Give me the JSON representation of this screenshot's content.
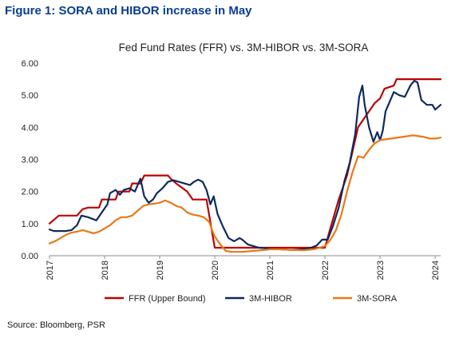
{
  "figure_title": "Figure 1: SORA and HIBOR increase in May",
  "source": "Source: Bloomberg, PSR",
  "chart_data": {
    "type": "line",
    "title": "Fed Fund Rates (FFR) vs. 3M-HIBOR vs. 3M-SORA",
    "xlabel": "",
    "ylabel": "",
    "xlim": [
      2017.0,
      2024.1
    ],
    "ylim": [
      0,
      6
    ],
    "y_ticks": [
      "0.00",
      "1.00",
      "2.00",
      "3.00",
      "4.00",
      "5.00",
      "6.00"
    ],
    "x_ticks": [
      "2017",
      "2018",
      "2019",
      "2020",
      "2021",
      "2022",
      "2023",
      "2024"
    ],
    "grid": false,
    "legend": "bottom",
    "series": [
      {
        "name": "FFR (Upper Bound)",
        "color": "#c00000",
        "points": [
          [
            2017.0,
            1.0
          ],
          [
            2017.17,
            1.25
          ],
          [
            2017.45,
            1.25
          ],
          [
            2017.5,
            1.25
          ],
          [
            2017.6,
            1.45
          ],
          [
            2017.7,
            1.5
          ],
          [
            2017.9,
            1.5
          ],
          [
            2017.95,
            1.75
          ],
          [
            2018.2,
            1.75
          ],
          [
            2018.25,
            2.0
          ],
          [
            2018.45,
            2.0
          ],
          [
            2018.5,
            2.25
          ],
          [
            2018.65,
            2.25
          ],
          [
            2018.72,
            2.5
          ],
          [
            2019.15,
            2.5
          ],
          [
            2019.2,
            2.4
          ],
          [
            2019.3,
            2.25
          ],
          [
            2019.5,
            2.0
          ],
          [
            2019.6,
            1.75
          ],
          [
            2019.85,
            1.75
          ],
          [
            2019.9,
            1.25
          ],
          [
            2020.0,
            0.25
          ],
          [
            2021.0,
            0.25
          ],
          [
            2022.0,
            0.25
          ],
          [
            2022.08,
            0.75
          ],
          [
            2022.25,
            1.75
          ],
          [
            2022.4,
            2.5
          ],
          [
            2022.5,
            3.25
          ],
          [
            2022.6,
            4.0
          ],
          [
            2022.8,
            4.5
          ],
          [
            2022.9,
            4.75
          ],
          [
            2023.0,
            4.9
          ],
          [
            2023.08,
            5.2
          ],
          [
            2023.25,
            5.3
          ],
          [
            2023.3,
            5.5
          ],
          [
            2024.1,
            5.5
          ]
        ]
      },
      {
        "name": "3M-HIBOR",
        "color": "#0e2a5e",
        "points": [
          [
            2017.0,
            0.82
          ],
          [
            2017.08,
            0.77
          ],
          [
            2017.3,
            0.77
          ],
          [
            2017.4,
            0.8
          ],
          [
            2017.5,
            0.95
          ],
          [
            2017.58,
            1.25
          ],
          [
            2017.7,
            1.2
          ],
          [
            2017.85,
            1.1
          ],
          [
            2017.95,
            1.35
          ],
          [
            2018.05,
            1.6
          ],
          [
            2018.1,
            1.95
          ],
          [
            2018.2,
            2.05
          ],
          [
            2018.28,
            1.9
          ],
          [
            2018.35,
            2.05
          ],
          [
            2018.45,
            2.1
          ],
          [
            2018.55,
            2.0
          ],
          [
            2018.65,
            2.4
          ],
          [
            2018.72,
            1.85
          ],
          [
            2018.8,
            1.65
          ],
          [
            2018.88,
            1.75
          ],
          [
            2018.95,
            1.95
          ],
          [
            2019.05,
            2.1
          ],
          [
            2019.15,
            2.3
          ],
          [
            2019.25,
            2.35
          ],
          [
            2019.35,
            2.3
          ],
          [
            2019.45,
            2.25
          ],
          [
            2019.55,
            2.2
          ],
          [
            2019.62,
            2.3
          ],
          [
            2019.7,
            2.37
          ],
          [
            2019.78,
            2.3
          ],
          [
            2019.85,
            2.05
          ],
          [
            2019.92,
            1.6
          ],
          [
            2019.98,
            1.85
          ],
          [
            2020.05,
            1.3
          ],
          [
            2020.15,
            0.9
          ],
          [
            2020.25,
            0.55
          ],
          [
            2020.35,
            0.45
          ],
          [
            2020.45,
            0.55
          ],
          [
            2020.5,
            0.5
          ],
          [
            2020.6,
            0.35
          ],
          [
            2020.7,
            0.3
          ],
          [
            2020.8,
            0.25
          ],
          [
            2021.0,
            0.22
          ],
          [
            2021.2,
            0.2
          ],
          [
            2021.4,
            0.18
          ],
          [
            2021.6,
            0.2
          ],
          [
            2021.75,
            0.25
          ],
          [
            2021.85,
            0.32
          ],
          [
            2021.95,
            0.5
          ],
          [
            2022.05,
            0.5
          ],
          [
            2022.15,
            0.95
          ],
          [
            2022.25,
            1.5
          ],
          [
            2022.35,
            2.3
          ],
          [
            2022.45,
            2.9
          ],
          [
            2022.55,
            3.8
          ],
          [
            2022.62,
            4.95
          ],
          [
            2022.68,
            5.3
          ],
          [
            2022.72,
            4.7
          ],
          [
            2022.8,
            4.0
          ],
          [
            2022.88,
            3.55
          ],
          [
            2022.95,
            3.85
          ],
          [
            2023.0,
            3.6
          ],
          [
            2023.05,
            3.9
          ],
          [
            2023.1,
            4.5
          ],
          [
            2023.2,
            4.9
          ],
          [
            2023.25,
            5.1
          ],
          [
            2023.35,
            5.0
          ],
          [
            2023.45,
            4.95
          ],
          [
            2023.55,
            5.3
          ],
          [
            2023.62,
            5.45
          ],
          [
            2023.68,
            5.4
          ],
          [
            2023.75,
            4.85
          ],
          [
            2023.85,
            4.7
          ],
          [
            2023.95,
            4.7
          ],
          [
            2024.0,
            4.55
          ],
          [
            2024.1,
            4.7
          ]
        ]
      },
      {
        "name": "3M-SORA",
        "color": "#e97817",
        "points": [
          [
            2017.0,
            0.38
          ],
          [
            2017.1,
            0.45
          ],
          [
            2017.2,
            0.55
          ],
          [
            2017.3,
            0.65
          ],
          [
            2017.4,
            0.72
          ],
          [
            2017.5,
            0.75
          ],
          [
            2017.6,
            0.8
          ],
          [
            2017.7,
            0.75
          ],
          [
            2017.8,
            0.7
          ],
          [
            2017.9,
            0.75
          ],
          [
            2018.0,
            0.85
          ],
          [
            2018.1,
            0.95
          ],
          [
            2018.2,
            1.1
          ],
          [
            2018.3,
            1.2
          ],
          [
            2018.4,
            1.2
          ],
          [
            2018.5,
            1.25
          ],
          [
            2018.6,
            1.4
          ],
          [
            2018.7,
            1.55
          ],
          [
            2018.8,
            1.6
          ],
          [
            2018.9,
            1.62
          ],
          [
            2019.0,
            1.65
          ],
          [
            2019.1,
            1.72
          ],
          [
            2019.2,
            1.65
          ],
          [
            2019.3,
            1.55
          ],
          [
            2019.4,
            1.5
          ],
          [
            2019.5,
            1.35
          ],
          [
            2019.6,
            1.28
          ],
          [
            2019.7,
            1.25
          ],
          [
            2019.8,
            1.2
          ],
          [
            2019.9,
            1.05
          ],
          [
            2019.95,
            0.8
          ],
          [
            2020.0,
            0.6
          ],
          [
            2020.1,
            0.35
          ],
          [
            2020.2,
            0.15
          ],
          [
            2020.3,
            0.12
          ],
          [
            2020.5,
            0.12
          ],
          [
            2020.7,
            0.15
          ],
          [
            2020.9,
            0.18
          ],
          [
            2021.0,
            0.2
          ],
          [
            2021.2,
            0.2
          ],
          [
            2021.4,
            0.18
          ],
          [
            2021.6,
            0.17
          ],
          [
            2021.8,
            0.2
          ],
          [
            2021.9,
            0.25
          ],
          [
            2022.0,
            0.3
          ],
          [
            2022.1,
            0.5
          ],
          [
            2022.2,
            0.8
          ],
          [
            2022.3,
            1.3
          ],
          [
            2022.4,
            2.0
          ],
          [
            2022.5,
            2.6
          ],
          [
            2022.6,
            3.1
          ],
          [
            2022.7,
            3.05
          ],
          [
            2022.8,
            3.3
          ],
          [
            2022.9,
            3.5
          ],
          [
            2023.0,
            3.6
          ],
          [
            2023.2,
            3.65
          ],
          [
            2023.4,
            3.7
          ],
          [
            2023.6,
            3.75
          ],
          [
            2023.8,
            3.7
          ],
          [
            2023.9,
            3.65
          ],
          [
            2024.0,
            3.65
          ],
          [
            2024.1,
            3.68
          ]
        ]
      }
    ]
  }
}
